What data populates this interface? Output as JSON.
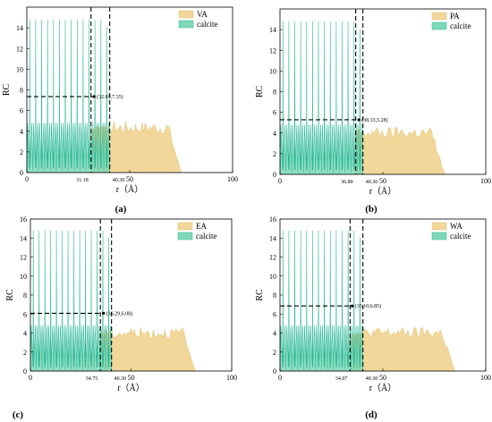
{
  "chart_data": [
    {
      "type": "area",
      "panel_label": "(a)",
      "xlabel": "r（Å）",
      "ylabel": "RC",
      "xlim": [
        0,
        100
      ],
      "ylim": [
        0,
        16
      ],
      "xticks": [
        0,
        50,
        100
      ],
      "yticks": [
        0,
        2,
        4,
        6,
        8,
        10,
        12,
        14
      ],
      "legend": [
        "VA",
        "calcite"
      ],
      "legend_position": "top-right",
      "colors": {
        "adsorbate": "#f2d79a",
        "calcite": "#7fd8b6",
        "calcite_line": "#2db99a"
      },
      "calcite_end": 40.3,
      "adsorbate_start": 31.2,
      "adsorbate_end": 75,
      "adsorbate_level": 4.3,
      "calcite_peak": 14.8,
      "vlines": [
        {
          "x": 31.18,
          "label": "31.18"
        },
        {
          "x": 40.3,
          "label": "40.30"
        }
      ],
      "annotation": {
        "x": 32.69,
        "y": 7.35,
        "label": "(32.69,7.35)"
      }
    },
    {
      "type": "area",
      "panel_label": "(b)",
      "xlabel": "r（Å）",
      "ylabel": "RC",
      "xlim": [
        0,
        100
      ],
      "ylim": [
        0,
        16
      ],
      "xticks": [
        0,
        50,
        100
      ],
      "yticks": [
        0,
        2,
        4,
        6,
        8,
        10,
        12,
        14
      ],
      "legend": [
        "PA",
        "calcite"
      ],
      "legend_position": "top-right",
      "colors": {
        "adsorbate": "#f2d79a",
        "calcite": "#7fd8b6",
        "calcite_line": "#2db99a"
      },
      "calcite_end": 40.3,
      "adsorbate_start": 36.8,
      "adsorbate_end": 80,
      "adsorbate_level": 4.0,
      "calcite_peak": 14.8,
      "vlines": [
        {
          "x": 36.8,
          "label": "36.80"
        },
        {
          "x": 40.3,
          "label": "40.30"
        }
      ],
      "annotation": {
        "x": 38.33,
        "y": 5.28,
        "label": "(38.33,5.28)"
      }
    },
    {
      "type": "area",
      "panel_label": "(c)",
      "xlabel": "r（Å）",
      "ylabel": "RC",
      "xlim": [
        0,
        100
      ],
      "ylim": [
        0,
        16
      ],
      "xticks": [
        0,
        50,
        100
      ],
      "yticks": [
        0,
        2,
        4,
        6,
        8,
        10,
        12,
        14,
        16
      ],
      "legend": [
        "EA",
        "calcite"
      ],
      "legend_position": "top-right",
      "colors": {
        "adsorbate": "#f2d79a",
        "calcite": "#7fd8b6",
        "calcite_line": "#2db99a"
      },
      "calcite_end": 40.3,
      "adsorbate_start": 34.75,
      "adsorbate_end": 82,
      "adsorbate_level": 4.0,
      "calcite_peak": 14.8,
      "vlines": [
        {
          "x": 34.75,
          "label": "34.75"
        },
        {
          "x": 40.3,
          "label": "40.30"
        }
      ],
      "annotation": {
        "x": 36.29,
        "y": 6.08,
        "label": "(36.29,6.08)"
      }
    },
    {
      "type": "area",
      "panel_label": "(d)",
      "xlabel": "r（Å）",
      "ylabel": "RC",
      "xlim": [
        0,
        100
      ],
      "ylim": [
        0,
        16
      ],
      "xticks": [
        0,
        50,
        100
      ],
      "yticks": [
        0,
        2,
        4,
        6,
        8,
        10,
        12,
        14,
        16
      ],
      "legend": [
        "WA",
        "calcite"
      ],
      "legend_position": "top-right",
      "colors": {
        "adsorbate": "#f2d79a",
        "calcite": "#7fd8b6",
        "calcite_line": "#2db99a"
      },
      "calcite_end": 40.3,
      "adsorbate_start": 34.07,
      "adsorbate_end": 85,
      "adsorbate_level": 4.0,
      "calcite_peak": 14.8,
      "vlines": [
        {
          "x": 34.07,
          "label": "34.07"
        },
        {
          "x": 40.3,
          "label": "40.30"
        }
      ],
      "annotation": {
        "x": 35.1,
        "y": 6.85,
        "label": "(35.10,6.85)"
      }
    }
  ]
}
